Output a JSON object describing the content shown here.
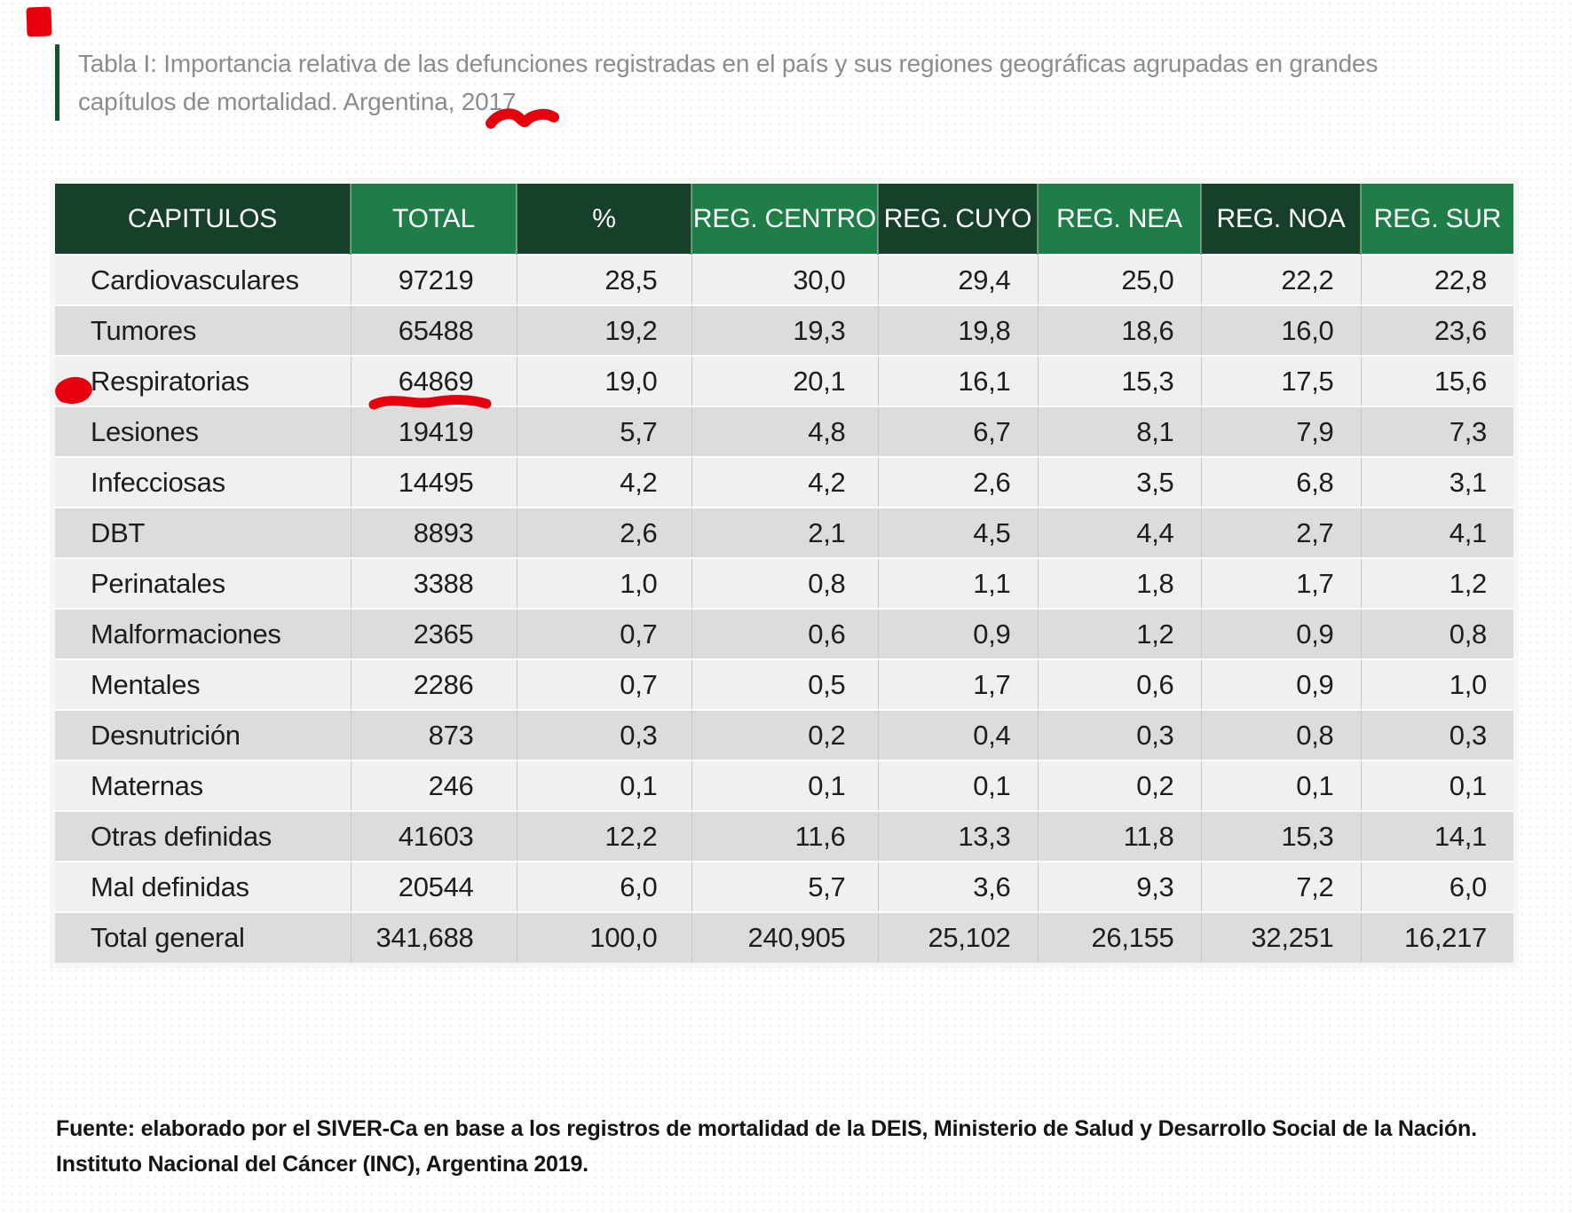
{
  "title": {
    "line1": "Tabla I: Importancia relativa de las defunciones registradas en el país y sus regiones geográficas agrupadas en grandes",
    "line2": "capítulos de mortalidad. Argentina, 2017"
  },
  "table": {
    "headers": [
      {
        "label": "CAPITULOS",
        "shade": "dark"
      },
      {
        "label": "TOTAL",
        "shade": "med"
      },
      {
        "label": "%",
        "shade": "dark"
      },
      {
        "label": "REG. CENTRO",
        "shade": "med"
      },
      {
        "label": "REG. CUYO",
        "shade": "dark"
      },
      {
        "label": "REG. NEA",
        "shade": "med"
      },
      {
        "label": "REG. NOA",
        "shade": "dark"
      },
      {
        "label": "REG. SUR",
        "shade": "med"
      }
    ],
    "rows": [
      [
        "Cardiovasculares",
        "97219",
        "28,5",
        "30,0",
        "29,4",
        "25,0",
        "22,2",
        "22,8"
      ],
      [
        "Tumores",
        "65488",
        "19,2",
        "19,3",
        "19,8",
        "18,6",
        "16,0",
        "23,6"
      ],
      [
        "Respiratorias",
        "64869",
        "19,0",
        "20,1",
        "16,1",
        "15,3",
        "17,5",
        "15,6"
      ],
      [
        "Lesiones",
        "19419",
        "5,7",
        "4,8",
        "6,7",
        "8,1",
        "7,9",
        "7,3"
      ],
      [
        "Infecciosas",
        "14495",
        "4,2",
        "4,2",
        "2,6",
        "3,5",
        "6,8",
        "3,1"
      ],
      [
        "DBT",
        "8893",
        "2,6",
        "2,1",
        "4,5",
        "4,4",
        "2,7",
        "4,1"
      ],
      [
        "Perinatales",
        "3388",
        "1,0",
        "0,8",
        "1,1",
        "1,8",
        "1,7",
        "1,2"
      ],
      [
        "Malformaciones",
        "2365",
        "0,7",
        "0,6",
        "0,9",
        "1,2",
        "0,9",
        "0,8"
      ],
      [
        "Mentales",
        "2286",
        "0,7",
        "0,5",
        "1,7",
        "0,6",
        "0,9",
        "1,0"
      ],
      [
        "Desnutrición",
        "873",
        "0,3",
        "0,2",
        "0,4",
        "0,3",
        "0,8",
        "0,3"
      ],
      [
        "Maternas",
        "246",
        "0,1",
        "0,1",
        "0,1",
        "0,2",
        "0,1",
        "0,1"
      ],
      [
        "Otras definidas",
        "41603",
        "12,2",
        "11,6",
        "13,3",
        "11,8",
        "15,3",
        "14,1"
      ],
      [
        "Mal definidas",
        "20544",
        "6,0",
        "5,7",
        "3,6",
        "9,3",
        "7,2",
        "6,0"
      ],
      [
        "Total general",
        "341,688",
        "100,0",
        "240,905",
        "25,102",
        "26,155",
        "32,251",
        "16,217"
      ]
    ]
  },
  "source": {
    "line1": "Fuente: elaborado por el SIVER-Ca en base a los registros de mortalidad de la DEIS, Ministerio de Salud y Desarrollo Social de la Nación.",
    "line2": "Instituto Nacional del Cáncer (INC), Argentina 2019."
  },
  "annotations": {
    "marker_color": "#e6000e",
    "circled_row_label": "Respiratorias",
    "underlined_value": "64869",
    "underlined_year": "2017"
  },
  "colors": {
    "header_dark_green": "#16402a",
    "header_medium_green": "#1f7d47",
    "row_light": "#f0f0f1",
    "row_dark": "#dcdcdd",
    "title_gray": "#8a8d8f",
    "title_bar_green": "#14532d"
  }
}
